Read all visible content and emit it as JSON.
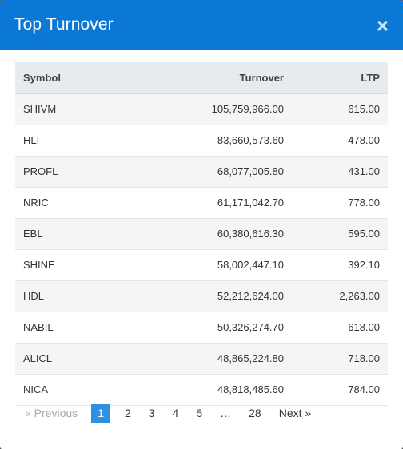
{
  "modal": {
    "title": "Top Turnover",
    "close_symbol": "×"
  },
  "table": {
    "headers": {
      "symbol": "Symbol",
      "turnover": "Turnover",
      "ltp": "LTP"
    },
    "rows": [
      {
        "symbol": "SHIVM",
        "turnover": "105,759,966.00",
        "ltp": "615.00"
      },
      {
        "symbol": "HLI",
        "turnover": "83,660,573.60",
        "ltp": "478.00"
      },
      {
        "symbol": "PROFL",
        "turnover": "68,077,005.80",
        "ltp": "431.00"
      },
      {
        "symbol": "NRIC",
        "turnover": "61,171,042.70",
        "ltp": "778.00"
      },
      {
        "symbol": "EBL",
        "turnover": "60,380,616.30",
        "ltp": "595.00"
      },
      {
        "symbol": "SHINE",
        "turnover": "58,002,447.10",
        "ltp": "392.10"
      },
      {
        "symbol": "HDL",
        "turnover": "52,212,624.00",
        "ltp": "2,263.00"
      },
      {
        "symbol": "NABIL",
        "turnover": "50,326,274.70",
        "ltp": "618.00"
      },
      {
        "symbol": "ALICL",
        "turnover": "48,865,224.80",
        "ltp": "718.00"
      },
      {
        "symbol": "NICA",
        "turnover": "48,818,485.60",
        "ltp": "784.00"
      }
    ]
  },
  "pagination": {
    "previous": "« Previous",
    "pages": [
      "1",
      "2",
      "3",
      "4",
      "5"
    ],
    "ellipsis": "…",
    "last": "28",
    "next": "Next »",
    "active": "1"
  },
  "colors": {
    "header_bg": "#0b78d6",
    "active_page": "#2f8fe0"
  }
}
